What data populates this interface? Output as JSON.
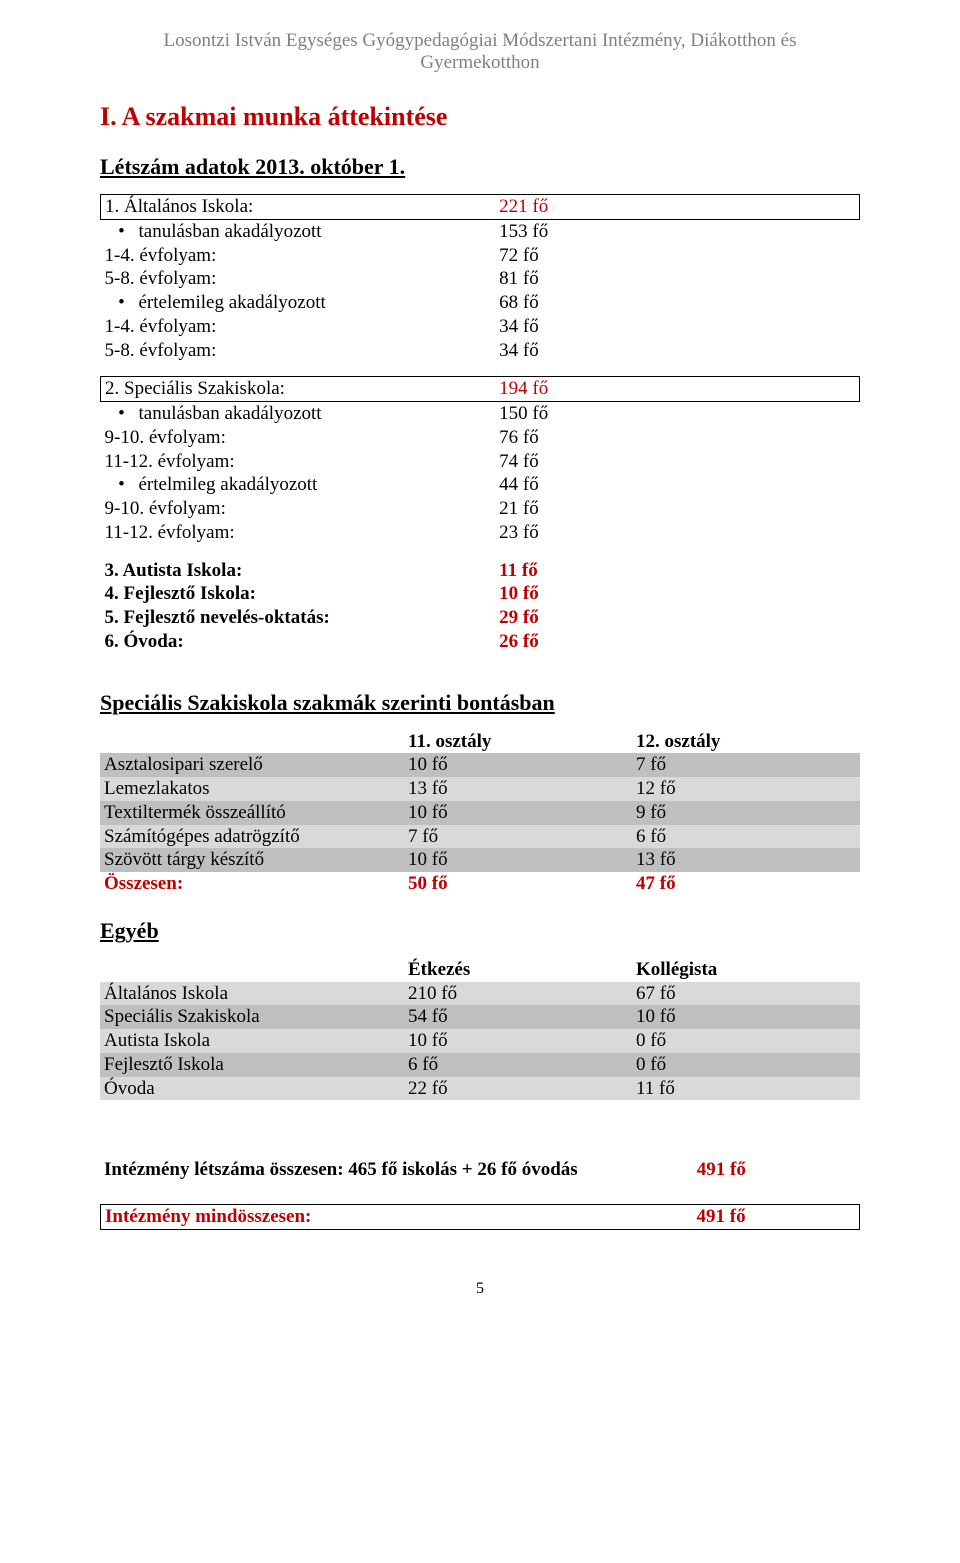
{
  "header": {
    "line1": "Losontzi István Egységes Gyógypedagógiai Módszertani Intézmény, Diákotthon és",
    "line2": "Gyermekotthon"
  },
  "title": "I. A szakmai munka áttekintése",
  "section1_title": "Létszám adatok 2013. október 1.",
  "s1": {
    "h1_label": "1. Általános Iskola:",
    "h1_val": "221 fő",
    "b1_label": "tanulásban akadályozott",
    "b1_val": "153 fő",
    "r1a_label": "1-4. évfolyam:",
    "r1a_val": "72 fő",
    "r1b_label": "5-8. évfolyam:",
    "r1b_val": "81 fő",
    "b2_label": "értelemileg akadályozott",
    "b2_val": "68 fő",
    "r2a_label": "1-4. évfolyam:",
    "r2a_val": "34 fő",
    "r2b_label": "5-8. évfolyam:",
    "r2b_val": "34 fő",
    "h2_label": "2. Speciális Szakiskola:",
    "h2_val": "194 fő",
    "b3_label": "tanulásban akadályozott",
    "b3_val": "150 fő",
    "r3a_label": "9-10. évfolyam:",
    "r3a_val": "76 fő",
    "r3b_label": "11-12. évfolyam:",
    "r3b_val": "74 fő",
    "b4_label": "értelmileg akadályozott",
    "b4_val": "44 fő",
    "r4a_label": "9-10. évfolyam:",
    "r4a_val": "21 fő",
    "r4b_label": "11-12. évfolyam:",
    "r4b_val": "23 fő",
    "h3_label": "3. Autista Iskola:",
    "h3_val": "11 fő",
    "h4_label": "4. Fejlesztő Iskola:",
    "h4_val": "10 fő",
    "h5_label": "5. Fejlesztő nevelés-oktatás:",
    "h5_val": "29 fő",
    "h6_label": "6. Óvoda:",
    "h6_val": "26 fő"
  },
  "section2_title": "Speciális Szakiskola szakmák szerinti bontásban",
  "t2": {
    "col1": "11. osztály",
    "col2": "12. osztály",
    "rows": [
      {
        "label": "Asztalosipari szerelő",
        "c1": "10 fő",
        "c2": "7 fő",
        "shade": "dark"
      },
      {
        "label": "Lemezlakatos",
        "c1": "13 fő",
        "c2": "12 fő",
        "shade": "light"
      },
      {
        "label": "Textiltermék összeállító",
        "c1": "10 fő",
        "c2": "9 fő",
        "shade": "dark"
      },
      {
        "label": "Számítógépes adatrögzítő",
        "c1": "7 fő",
        "c2": "6 fő",
        "shade": "light"
      },
      {
        "label": "Szövött tárgy készítő",
        "c1": "10 fő",
        "c2": "13 fő",
        "shade": "dark"
      }
    ],
    "total_label": "Összesen:",
    "total_c1": "50 fő",
    "total_c2": "47 fő"
  },
  "section3_title": "Egyéb",
  "t3": {
    "col1": "Étkezés",
    "col2": "Kollégista",
    "rows": [
      {
        "label": "Általános Iskola",
        "c1": "210 fő",
        "c2": "67 fő",
        "shade": "light"
      },
      {
        "label": "Speciális Szakiskola",
        "c1": "54 fő",
        "c2": "10 fő",
        "shade": "dark"
      },
      {
        "label": "Autista Iskola",
        "c1": "10 fő",
        "c2": "0 fő",
        "shade": "light"
      },
      {
        "label": "Fejlesztő Iskola",
        "c1": "6 fő",
        "c2": "0 fő",
        "shade": "dark"
      },
      {
        "label": "Óvoda",
        "c1": "22 fő",
        "c2": "11 fő",
        "shade": "light"
      }
    ]
  },
  "summary1_label": "Intézmény létszáma összesen: 465 fő iskolás + 26 fő óvodás",
  "summary1_val": "491 fő",
  "summary2_label": "Intézmény mindösszesen:",
  "summary2_val": "491 fő",
  "page_number": "5",
  "colors": {
    "red": "#c00000",
    "header_gray": "#808080",
    "shade_dark": "#bfbfbf",
    "shade_light": "#d9d9d9"
  }
}
